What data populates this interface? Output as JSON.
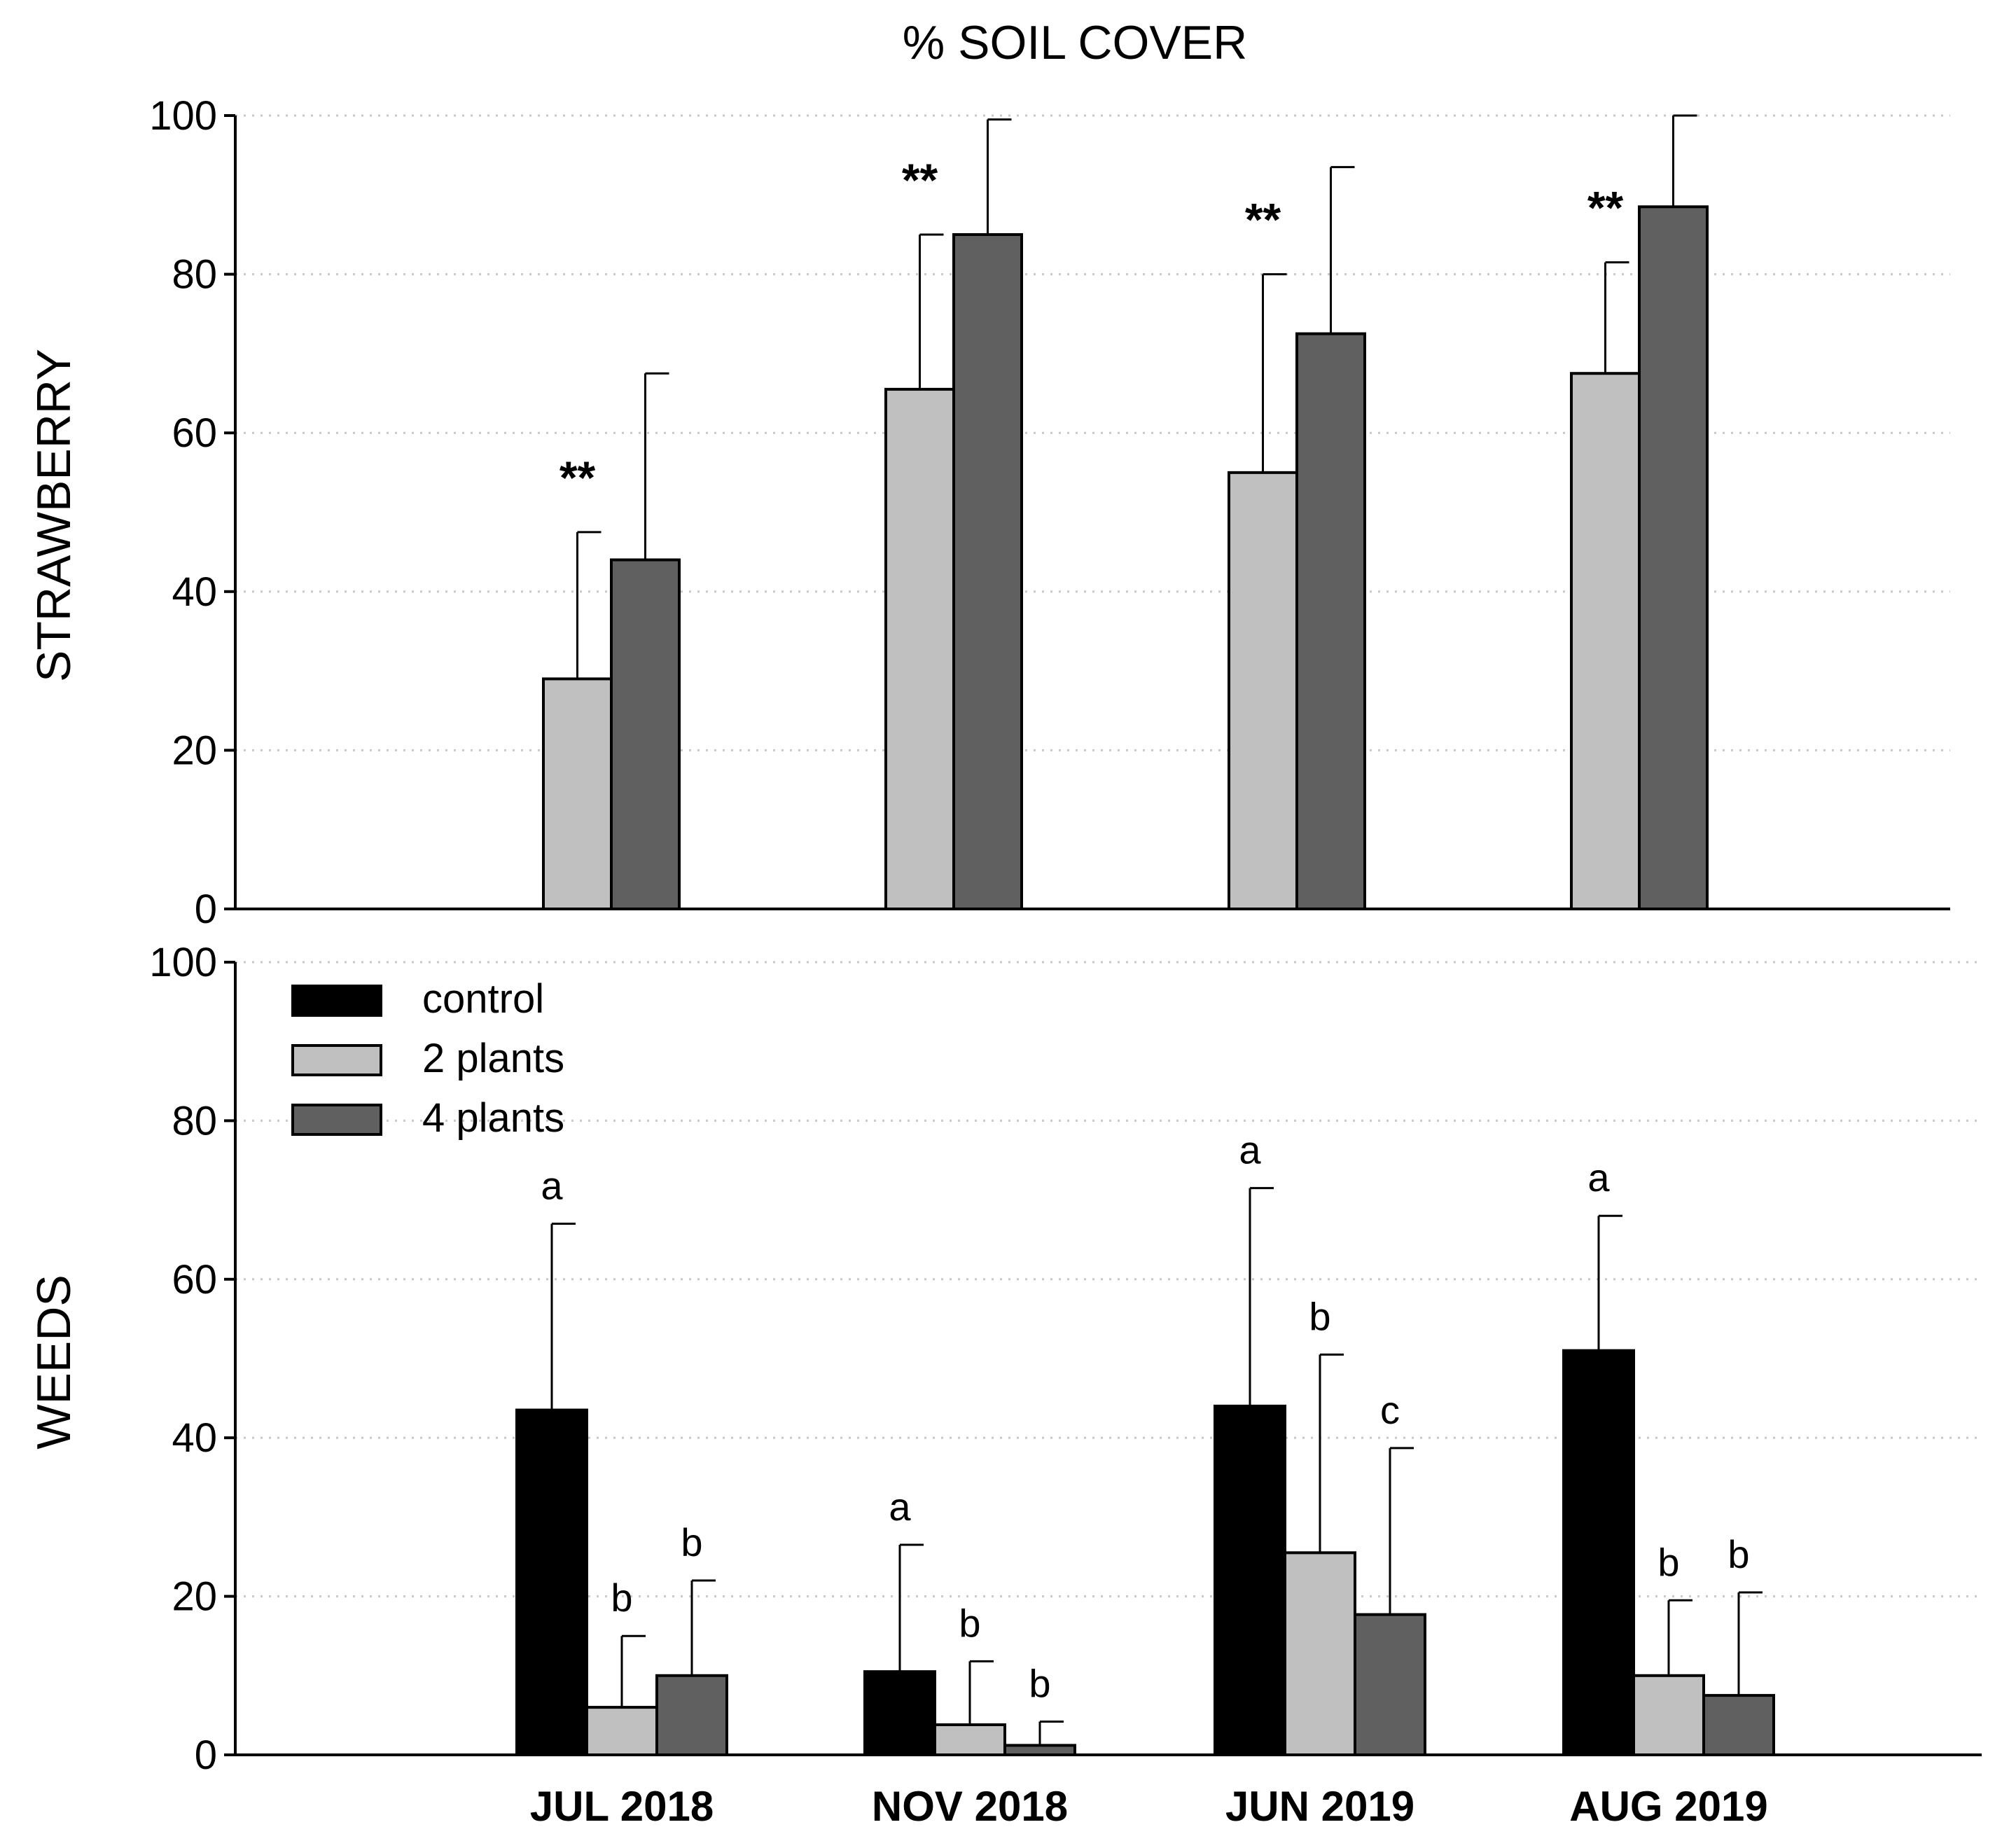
{
  "chart_data": {
    "type": "bar",
    "title": "% SOIL COVER",
    "categories": [
      "JUL 2018",
      "NOV 2018",
      "JUN 2019",
      "AUG 2019"
    ],
    "legend": {
      "position": "top-left of lower panel",
      "entries": [
        {
          "name": "control",
          "color": "#000000"
        },
        {
          "name": "2 plants",
          "color": "#c0c0c0"
        },
        {
          "name": "4 plants",
          "color": "#606060"
        }
      ]
    },
    "colors": {
      "control": "#000000",
      "2 plants": "#c0c0c0",
      "4 plants": "#606060"
    },
    "grid": true,
    "panels": [
      {
        "ylabel": "STRAWBERRY",
        "ylim": [
          0,
          100
        ],
        "yticks": [
          0,
          20,
          40,
          60,
          80,
          100
        ],
        "series": [
          {
            "name": "2 plants",
            "values": [
              29,
              65.5,
              55,
              67.5
            ],
            "errors": [
              18.5,
              19.5,
              25,
              14
            ]
          },
          {
            "name": "4 plants",
            "values": [
              44,
              85,
              72.5,
              88.5
            ],
            "errors": [
              23.5,
              14.5,
              21,
              12
            ]
          }
        ],
        "annotations": [
          "**",
          "**",
          "**",
          "**"
        ]
      },
      {
        "ylabel": "WEEDS",
        "ylim": [
          0,
          100
        ],
        "yticks": [
          0,
          20,
          40,
          60,
          80,
          100
        ],
        "series": [
          {
            "name": "control",
            "values": [
              43.5,
              10.5,
              44,
              51
            ],
            "errors": [
              23.5,
              16,
              27.5,
              17
            ],
            "letters": [
              "a",
              "a",
              "a",
              "a"
            ]
          },
          {
            "name": "2 plants",
            "values": [
              6,
              3.8,
              25.5,
              10
            ],
            "errors": [
              9,
              8,
              25,
              9.5
            ],
            "letters": [
              "b",
              "b",
              "b",
              "b"
            ]
          },
          {
            "name": "4 plants",
            "values": [
              10,
              1.2,
              17.7,
              7.5
            ],
            "errors": [
              12,
              3,
              21,
              13
            ],
            "letters": [
              "b",
              "b",
              "c",
              "b"
            ]
          }
        ]
      }
    ]
  }
}
